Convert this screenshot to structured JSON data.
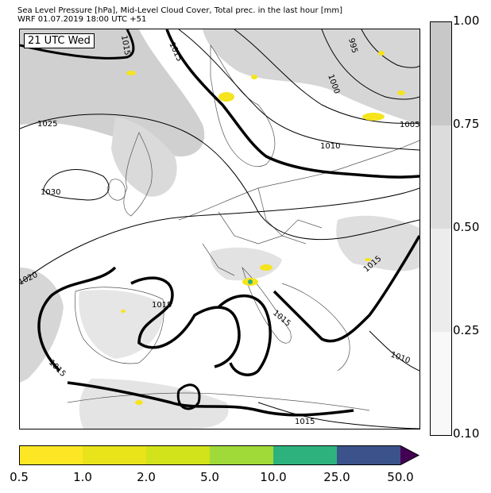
{
  "header": {
    "line1": "Sea Level Pressure [hPa], Mid-Level Cloud Cover, Total prec. in the last hour [mm]",
    "line2": "WRF 01.07.2019 18:00 UTC +51"
  },
  "map": {
    "time_label": "21 UTC Wed",
    "isobar_labels": [
      "1015",
      "1015",
      "995",
      "1000",
      "1005",
      "1010",
      "1025",
      "1030",
      "1020",
      "1015",
      "1015",
      "1015",
      "1015",
      "1015",
      "1010",
      "1015"
    ],
    "colors": {
      "land": "#ffffff",
      "cloud": "#d0d0d0",
      "cloud_dense": "#bdbdbd",
      "isobar": "#000000",
      "coast": "#444444",
      "precip": "#f5e41e"
    }
  },
  "cloud_colorbar": {
    "ticks": [
      "1.00",
      "0.75",
      "0.50",
      "0.25",
      "0.10"
    ],
    "colors": [
      "#c8c8c8",
      "#dcdcdc",
      "#ececec",
      "#f8f8f8"
    ]
  },
  "precip_colorbar": {
    "ticks": [
      "0.5",
      "1.0",
      "2.0",
      "5.0",
      "10.0",
      "25.0",
      "50.0"
    ],
    "colors": [
      "#fde725",
      "#e8e419",
      "#d2e21b",
      "#a0da39",
      "#2db27d",
      "#3b528b",
      "#440154"
    ]
  }
}
